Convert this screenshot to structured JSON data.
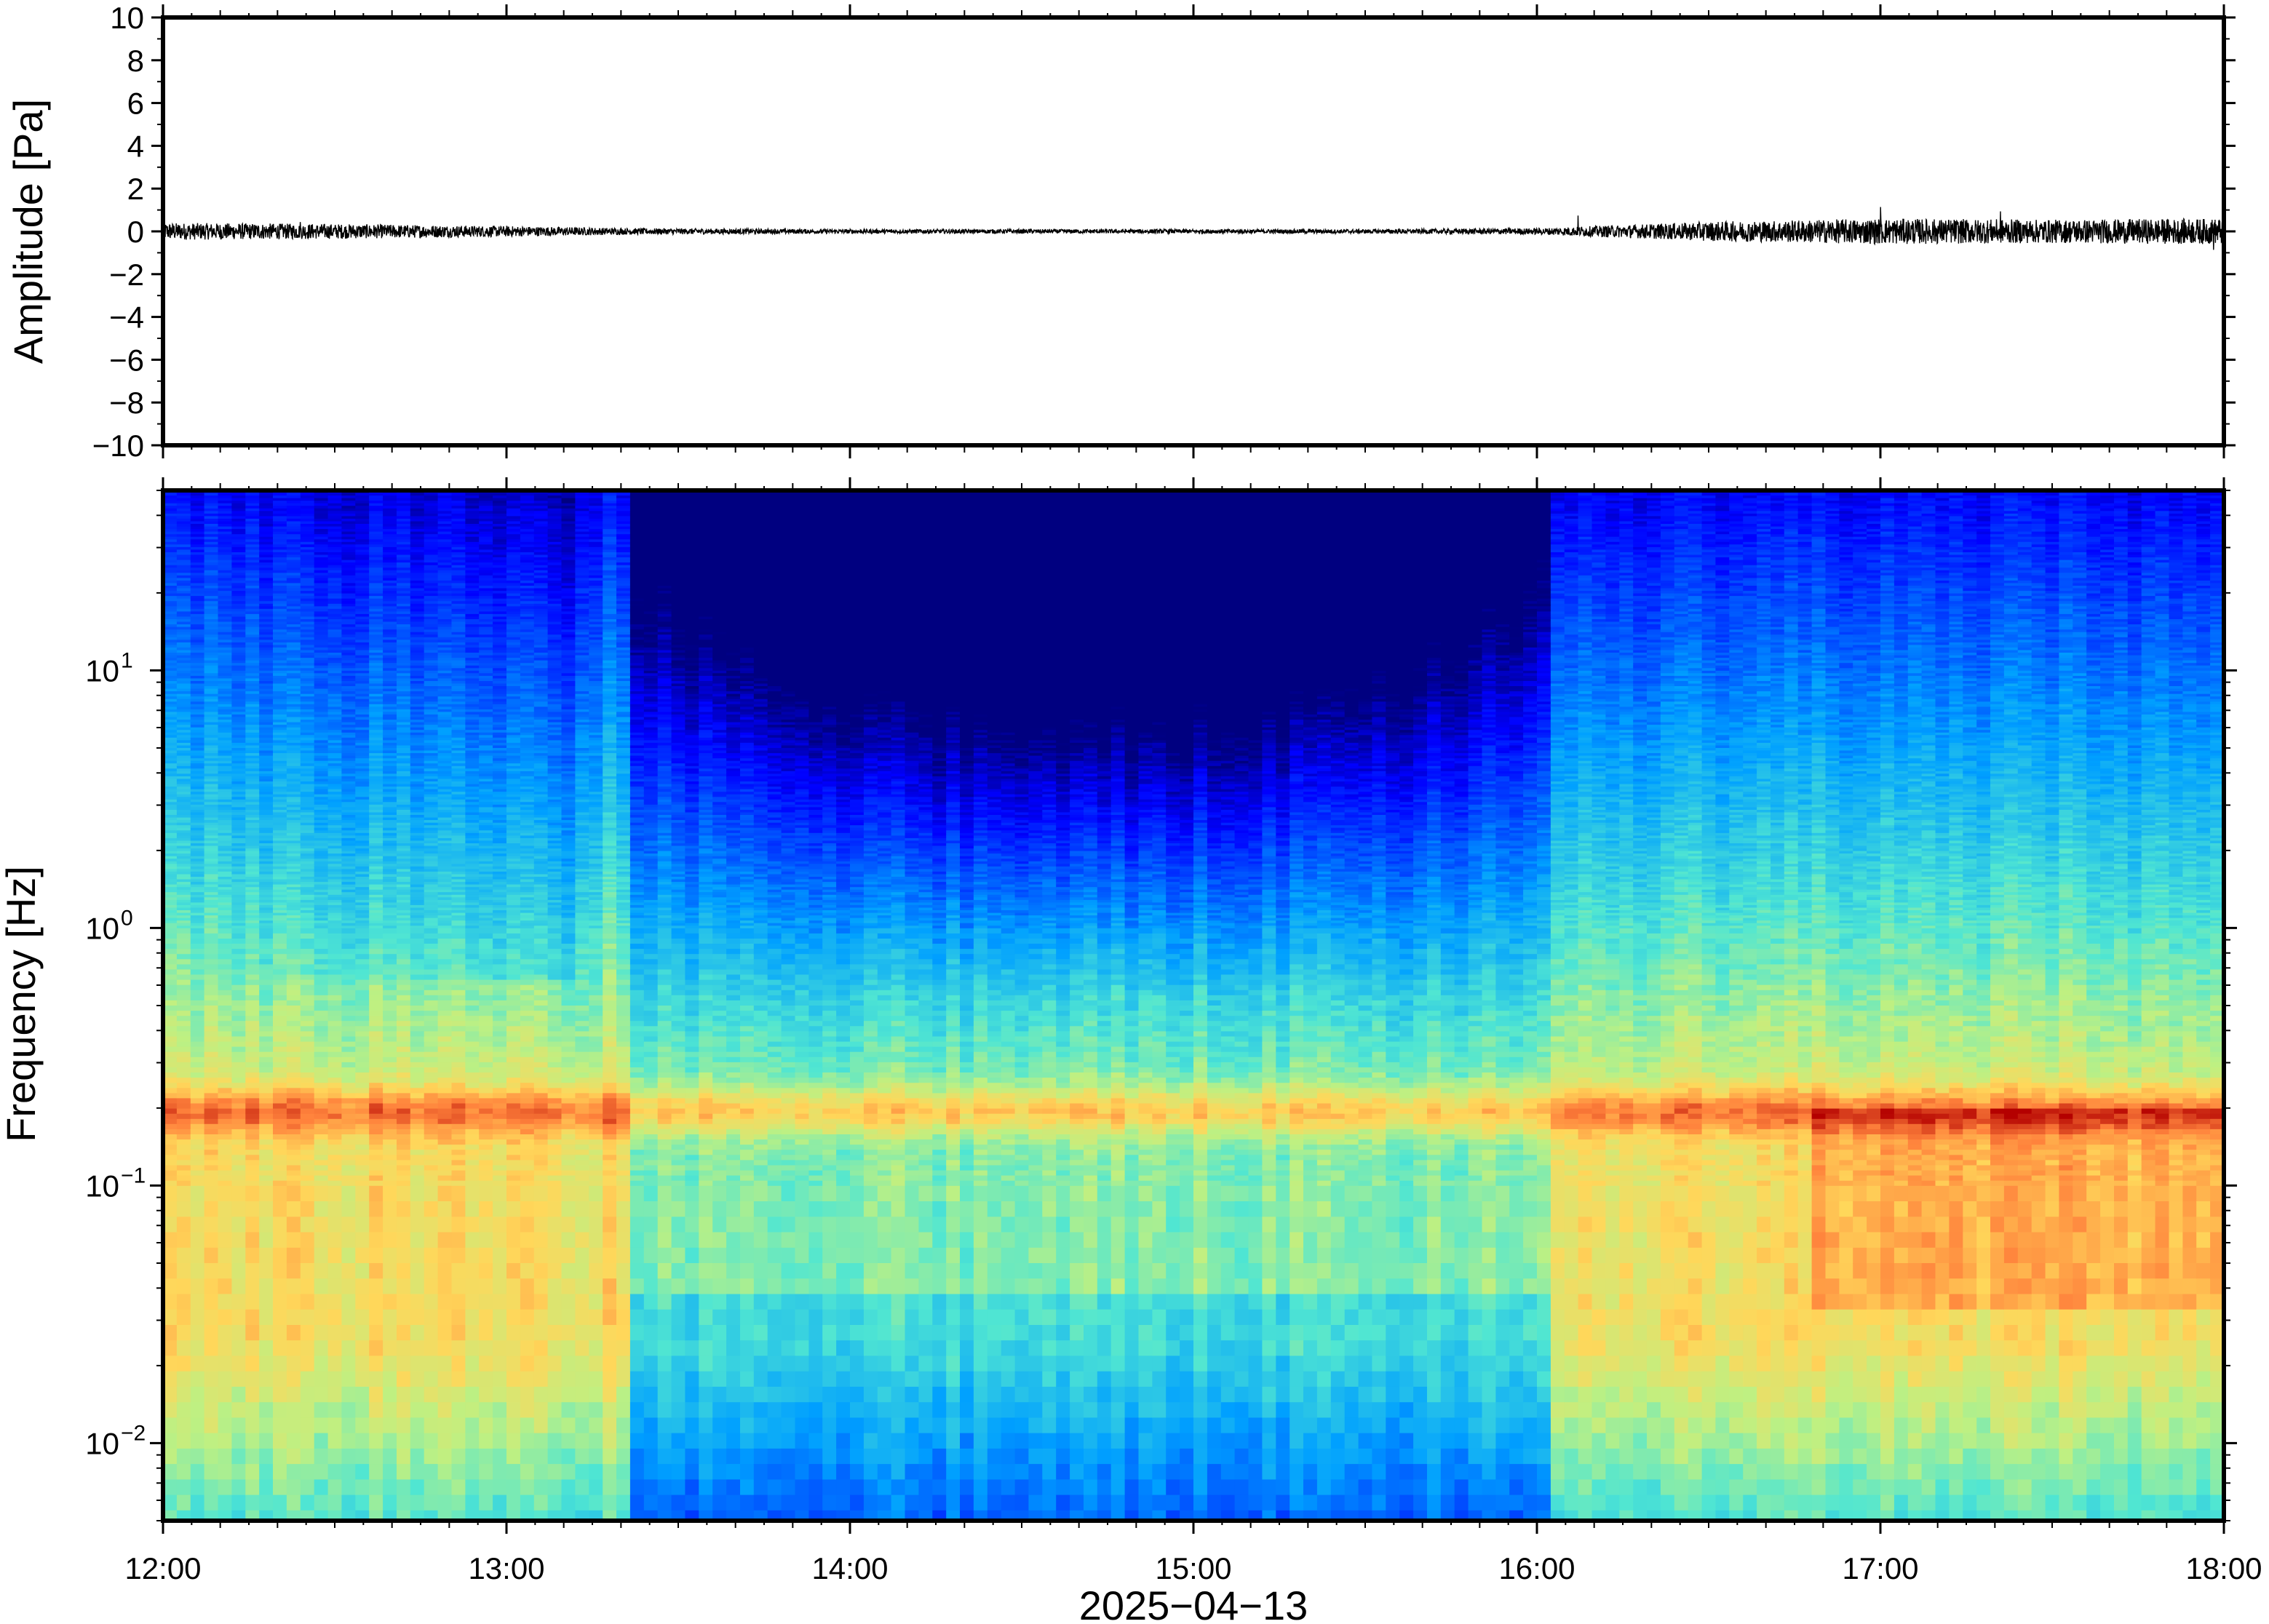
{
  "chart_data": [
    {
      "type": "line",
      "ylabel": "Amplitude [Pa]",
      "ylim": [
        -10,
        10
      ],
      "yticks": [
        "10",
        "8",
        "6",
        "4",
        "2",
        "0",
        "−2",
        "−4",
        "−6",
        "−8",
        "−10"
      ],
      "yticks_values": [
        10,
        8,
        6,
        4,
        2,
        0,
        -2,
        -4,
        -6,
        -8,
        -10
      ],
      "x_range": [
        "12:00",
        "18:00"
      ],
      "series": [
        {
          "color": "#000000",
          "description_free": true,
          "x_hours": [
            12.0,
            12.5,
            13.0,
            13.35,
            14.0,
            14.5,
            15.0,
            15.5,
            16.0,
            16.5,
            17.0,
            17.5,
            18.0
          ],
          "envelope_pa": [
            0.4,
            0.35,
            0.25,
            0.15,
            0.1,
            0.1,
            0.1,
            0.1,
            0.15,
            0.45,
            0.6,
            0.55,
            0.6
          ],
          "peaks": [
            {
              "x": 12.4,
              "y": 0.7
            },
            {
              "x": 16.12,
              "y": 0.8
            },
            {
              "x": 17.0,
              "y": 1.2
            },
            {
              "x": 17.35,
              "y": 1.0
            },
            {
              "x": 17.97,
              "y": -1.4
            }
          ]
        }
      ]
    },
    {
      "type": "heatmap",
      "ylabel": "Frequency [Hz]",
      "yscale": "log",
      "ylim": [
        0.005,
        50
      ],
      "yticks": [
        {
          "value": 10,
          "base": "10",
          "exp": "1"
        },
        {
          "value": 1,
          "base": "10",
          "exp": "0"
        },
        {
          "value": 0.1,
          "base": "10",
          "exp": "−1"
        },
        {
          "value": 0.01,
          "base": "10",
          "exp": "−2"
        }
      ],
      "xlabel": "2025−04−13",
      "x_ticks": [
        "12:00",
        "13:00",
        "14:00",
        "15:00",
        "16:00",
        "17:00",
        "18:00"
      ],
      "colormap": "jet",
      "quiet_period": [
        "13:22",
        "16:02"
      ],
      "microseism_band_hz": [
        0.15,
        0.25
      ]
    }
  ]
}
